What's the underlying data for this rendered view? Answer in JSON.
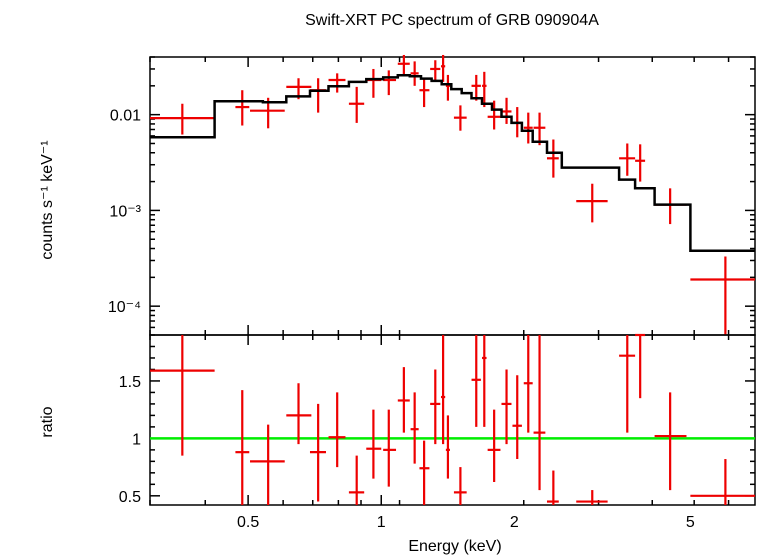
{
  "chart_data": [
    {
      "panel": "top",
      "type": "scatter",
      "title": "Swift-XRT PC spectrum of GRB 090904A",
      "xlabel": "",
      "ylabel": "counts s⁻¹ keV⁻¹",
      "xscale": "log",
      "yscale": "log",
      "xlim": [
        0.3,
        7.0
      ],
      "ylim": [
        5e-05,
        0.04
      ],
      "yticks": [
        {
          "value": 0.01,
          "label": "0.01"
        },
        {
          "value": 0.001,
          "label": "10⁻³"
        },
        {
          "value": 0.0001,
          "label": "10⁻⁴"
        }
      ],
      "series": [
        {
          "name": "data",
          "color": "#ee0000",
          "points": [
            {
              "x": 0.355,
              "xlo": 0.3,
              "xhi": 0.42,
              "y": 0.0092,
              "ylo": 0.0062,
              "yhi": 0.013
            },
            {
              "x": 0.485,
              "xlo": 0.468,
              "xhi": 0.503,
              "y": 0.012,
              "ylo": 0.0077,
              "yhi": 0.018
            },
            {
              "x": 0.555,
              "xlo": 0.505,
              "xhi": 0.605,
              "y": 0.011,
              "ylo": 0.0072,
              "yhi": 0.015
            },
            {
              "x": 0.65,
              "xlo": 0.61,
              "xhi": 0.695,
              "y": 0.0195,
              "ylo": 0.0145,
              "yhi": 0.024
            },
            {
              "x": 0.72,
              "xlo": 0.69,
              "xhi": 0.75,
              "y": 0.018,
              "ylo": 0.0105,
              "yhi": 0.024
            },
            {
              "x": 0.795,
              "xlo": 0.76,
              "xhi": 0.83,
              "y": 0.023,
              "ylo": 0.017,
              "yhi": 0.027
            },
            {
              "x": 0.88,
              "xlo": 0.845,
              "xhi": 0.915,
              "y": 0.013,
              "ylo": 0.0082,
              "yhi": 0.0195
            },
            {
              "x": 0.96,
              "xlo": 0.925,
              "xhi": 1.0,
              "y": 0.023,
              "ylo": 0.015,
              "yhi": 0.03
            },
            {
              "x": 1.04,
              "xlo": 1.01,
              "xhi": 1.08,
              "y": 0.023,
              "ylo": 0.016,
              "yhi": 0.029
            },
            {
              "x": 1.125,
              "xlo": 1.09,
              "xhi": 1.16,
              "y": 0.034,
              "ylo": 0.026,
              "yhi": 0.042
            },
            {
              "x": 1.19,
              "xlo": 1.165,
              "xhi": 1.215,
              "y": 0.027,
              "ylo": 0.02,
              "yhi": 0.036
            },
            {
              "x": 1.25,
              "xlo": 1.22,
              "xhi": 1.285,
              "y": 0.018,
              "ylo": 0.012,
              "yhi": 0.024
            },
            {
              "x": 1.325,
              "xlo": 1.29,
              "xhi": 1.36,
              "y": 0.03,
              "ylo": 0.022,
              "yhi": 0.037
            },
            {
              "x": 1.38,
              "xlo": 1.365,
              "xhi": 1.395,
              "y": 0.032,
              "ylo": 0.022,
              "yhi": 0.042
            },
            {
              "x": 1.415,
              "xlo": 1.4,
              "xhi": 1.43,
              "y": 0.02,
              "ylo": 0.014,
              "yhi": 0.026
            },
            {
              "x": 1.51,
              "xlo": 1.46,
              "xhi": 1.56,
              "y": 0.0093,
              "ylo": 0.0068,
              "yhi": 0.0125
            },
            {
              "x": 1.64,
              "xlo": 1.6,
              "xhi": 1.68,
              "y": 0.02,
              "ylo": 0.014,
              "yhi": 0.026
            },
            {
              "x": 1.71,
              "xlo": 1.69,
              "xhi": 1.73,
              "y": 0.02,
              "ylo": 0.012,
              "yhi": 0.028
            },
            {
              "x": 1.8,
              "xlo": 1.74,
              "xhi": 1.86,
              "y": 0.0095,
              "ylo": 0.007,
              "yhi": 0.014
            },
            {
              "x": 1.92,
              "xlo": 1.87,
              "xhi": 1.97,
              "y": 0.0108,
              "ylo": 0.008,
              "yhi": 0.015
            },
            {
              "x": 2.03,
              "xlo": 1.98,
              "xhi": 2.08,
              "y": 0.0082,
              "ylo": 0.0058,
              "yhi": 0.012
            },
            {
              "x": 2.15,
              "xlo": 2.1,
              "xhi": 2.2,
              "y": 0.0073,
              "ylo": 0.005,
              "yhi": 0.0105
            },
            {
              "x": 2.28,
              "xlo": 2.21,
              "xhi": 2.35,
              "y": 0.0073,
              "ylo": 0.0048,
              "yhi": 0.0105
            },
            {
              "x": 2.45,
              "xlo": 2.37,
              "xhi": 2.52,
              "y": 0.0035,
              "ylo": 0.0022,
              "yhi": 0.0055
            },
            {
              "x": 3.0,
              "xlo": 2.76,
              "xhi": 3.25,
              "y": 0.00125,
              "ylo": 0.00075,
              "yhi": 0.0019
            },
            {
              "x": 3.6,
              "xlo": 3.45,
              "xhi": 3.75,
              "y": 0.0035,
              "ylo": 0.0023,
              "yhi": 0.005
            },
            {
              "x": 3.85,
              "xlo": 3.75,
              "xhi": 3.95,
              "y": 0.0033,
              "ylo": 0.002,
              "yhi": 0.0049
            },
            {
              "x": 4.5,
              "xlo": 4.15,
              "xhi": 4.9,
              "y": 0.00115,
              "ylo": 0.00072,
              "yhi": 0.0017
            },
            {
              "x": 6.0,
              "xlo": 5.0,
              "xhi": 7.0,
              "y": 0.00019,
              "ylo": 5e-05,
              "yhi": 0.00033
            }
          ]
        },
        {
          "name": "model",
          "color": "#000000",
          "steps": [
            {
              "x0": 0.3,
              "x1": 0.42,
              "y": 0.0058
            },
            {
              "x0": 0.42,
              "x1": 0.54,
              "y": 0.0138
            },
            {
              "x0": 0.54,
              "x1": 0.61,
              "y": 0.0135
            },
            {
              "x0": 0.61,
              "x1": 0.69,
              "y": 0.0155
            },
            {
              "x0": 0.69,
              "x1": 0.76,
              "y": 0.0178
            },
            {
              "x0": 0.76,
              "x1": 0.845,
              "y": 0.0198
            },
            {
              "x0": 0.845,
              "x1": 0.925,
              "y": 0.022
            },
            {
              "x0": 0.925,
              "x1": 1.01,
              "y": 0.0235
            },
            {
              "x0": 1.01,
              "x1": 1.09,
              "y": 0.0245
            },
            {
              "x0": 1.09,
              "x1": 1.16,
              "y": 0.0258
            },
            {
              "x0": 1.16,
              "x1": 1.23,
              "y": 0.0252
            },
            {
              "x0": 1.23,
              "x1": 1.3,
              "y": 0.0238
            },
            {
              "x0": 1.3,
              "x1": 1.37,
              "y": 0.0225
            },
            {
              "x0": 1.37,
              "x1": 1.44,
              "y": 0.0208
            },
            {
              "x0": 1.44,
              "x1": 1.52,
              "y": 0.0185
            },
            {
              "x0": 1.52,
              "x1": 1.6,
              "y": 0.0168
            },
            {
              "x0": 1.6,
              "x1": 1.69,
              "y": 0.0148
            },
            {
              "x0": 1.69,
              "x1": 1.78,
              "y": 0.013
            },
            {
              "x0": 1.78,
              "x1": 1.87,
              "y": 0.0113
            },
            {
              "x0": 1.87,
              "x1": 1.97,
              "y": 0.0095
            },
            {
              "x0": 1.97,
              "x1": 2.08,
              "y": 0.0082
            },
            {
              "x0": 2.08,
              "x1": 2.2,
              "y": 0.0068
            },
            {
              "x0": 2.2,
              "x1": 2.37,
              "y": 0.0052
            },
            {
              "x0": 2.37,
              "x1": 2.56,
              "y": 0.004
            },
            {
              "x0": 2.56,
              "x1": 3.45,
              "y": 0.0028
            },
            {
              "x0": 3.45,
              "x1": 3.75,
              "y": 0.0021
            },
            {
              "x0": 3.75,
              "x1": 4.15,
              "y": 0.0017
            },
            {
              "x0": 4.15,
              "x1": 5.0,
              "y": 0.00115
            },
            {
              "x0": 5.0,
              "x1": 7.0,
              "y": 0.00038
            }
          ]
        }
      ]
    },
    {
      "panel": "bottom",
      "type": "scatter",
      "xlabel": "Energy (keV)",
      "ylabel": "ratio",
      "xscale": "log",
      "yscale": "linear",
      "xlim": [
        0.3,
        7.0
      ],
      "ylim": [
        0.42,
        1.9
      ],
      "yticks": [
        {
          "value": 0.5,
          "label": "0.5"
        },
        {
          "value": 1,
          "label": "1"
        },
        {
          "value": 1.5,
          "label": "1.5"
        }
      ],
      "xticks": [
        {
          "value": 0.5,
          "label": "0.5"
        },
        {
          "value": 1,
          "label": "1"
        },
        {
          "value": 2,
          "label": "2"
        },
        {
          "value": 5,
          "label": "5"
        }
      ],
      "reference_line": {
        "y": 1,
        "color": "#00ee00"
      },
      "series": [
        {
          "name": "ratio",
          "color": "#ee0000",
          "points": [
            {
              "x": 0.355,
              "xlo": 0.3,
              "xhi": 0.42,
              "y": 1.59,
              "ylo": 0.85,
              "yhi": 1.9
            },
            {
              "x": 0.485,
              "xlo": 0.468,
              "xhi": 0.503,
              "y": 0.88,
              "ylo": 0.42,
              "yhi": 1.42
            },
            {
              "x": 0.555,
              "xlo": 0.505,
              "xhi": 0.605,
              "y": 0.8,
              "ylo": 0.42,
              "yhi": 1.12
            },
            {
              "x": 0.65,
              "xlo": 0.61,
              "xhi": 0.695,
              "y": 1.2,
              "ylo": 0.95,
              "yhi": 1.48
            },
            {
              "x": 0.72,
              "xlo": 0.69,
              "xhi": 0.75,
              "y": 0.88,
              "ylo": 0.45,
              "yhi": 1.3
            },
            {
              "x": 0.795,
              "xlo": 0.76,
              "xhi": 0.83,
              "y": 1.01,
              "ylo": 0.75,
              "yhi": 1.4
            },
            {
              "x": 0.88,
              "xlo": 0.845,
              "xhi": 0.915,
              "y": 0.53,
              "ylo": 0.42,
              "yhi": 0.85
            },
            {
              "x": 0.96,
              "xlo": 0.925,
              "xhi": 1.0,
              "y": 0.91,
              "ylo": 0.65,
              "yhi": 1.25
            },
            {
              "x": 1.04,
              "xlo": 1.01,
              "xhi": 1.08,
              "y": 0.9,
              "ylo": 0.58,
              "yhi": 1.25
            },
            {
              "x": 1.125,
              "xlo": 1.09,
              "xhi": 1.16,
              "y": 1.33,
              "ylo": 1.05,
              "yhi": 1.62
            },
            {
              "x": 1.19,
              "xlo": 1.165,
              "xhi": 1.215,
              "y": 1.08,
              "ylo": 0.78,
              "yhi": 1.4
            },
            {
              "x": 1.25,
              "xlo": 1.22,
              "xhi": 1.285,
              "y": 0.74,
              "ylo": 0.42,
              "yhi": 0.98
            },
            {
              "x": 1.325,
              "xlo": 1.29,
              "xhi": 1.36,
              "y": 1.3,
              "ylo": 0.95,
              "yhi": 1.6
            },
            {
              "x": 1.38,
              "xlo": 1.365,
              "xhi": 1.395,
              "y": 1.36,
              "ylo": 0.95,
              "yhi": 1.9
            },
            {
              "x": 1.415,
              "xlo": 1.4,
              "xhi": 1.43,
              "y": 0.9,
              "ylo": 0.65,
              "yhi": 1.2
            },
            {
              "x": 1.51,
              "xlo": 1.46,
              "xhi": 1.56,
              "y": 0.53,
              "ylo": 0.42,
              "yhi": 0.75
            },
            {
              "x": 1.64,
              "xlo": 1.6,
              "xhi": 1.68,
              "y": 1.51,
              "ylo": 1.1,
              "yhi": 1.9
            },
            {
              "x": 1.71,
              "xlo": 1.69,
              "xhi": 1.73,
              "y": 1.7,
              "ylo": 1.1,
              "yhi": 1.9
            },
            {
              "x": 1.8,
              "xlo": 1.74,
              "xhi": 1.86,
              "y": 0.9,
              "ylo": 0.62,
              "yhi": 1.25
            },
            {
              "x": 1.92,
              "xlo": 1.87,
              "xhi": 1.97,
              "y": 1.3,
              "ylo": 0.95,
              "yhi": 1.6
            },
            {
              "x": 2.03,
              "xlo": 1.98,
              "xhi": 2.08,
              "y": 1.11,
              "ylo": 0.82,
              "yhi": 1.55
            },
            {
              "x": 2.15,
              "xlo": 2.1,
              "xhi": 2.2,
              "y": 1.48,
              "ylo": 1.05,
              "yhi": 1.9
            },
            {
              "x": 2.28,
              "xlo": 2.21,
              "xhi": 2.35,
              "y": 1.05,
              "ylo": 0.55,
              "yhi": 1.9
            },
            {
              "x": 2.45,
              "xlo": 2.37,
              "xhi": 2.52,
              "y": 0.45,
              "ylo": 0.42,
              "yhi": 0.72
            },
            {
              "x": 3.0,
              "xlo": 2.76,
              "xhi": 3.25,
              "y": 0.45,
              "ylo": 0.42,
              "yhi": 0.55
            },
            {
              "x": 3.6,
              "xlo": 3.45,
              "xhi": 3.75,
              "y": 1.72,
              "ylo": 1.05,
              "yhi": 1.9
            },
            {
              "x": 3.85,
              "xlo": 3.75,
              "xhi": 3.95,
              "y": 1.9,
              "ylo": 1.35,
              "yhi": 1.9
            },
            {
              "x": 4.5,
              "xlo": 4.15,
              "xhi": 4.9,
              "y": 1.02,
              "ylo": 0.55,
              "yhi": 1.4
            },
            {
              "x": 6.0,
              "xlo": 5.0,
              "xhi": 7.0,
              "y": 0.5,
              "ylo": 0.42,
              "yhi": 0.82
            }
          ]
        }
      ]
    }
  ]
}
